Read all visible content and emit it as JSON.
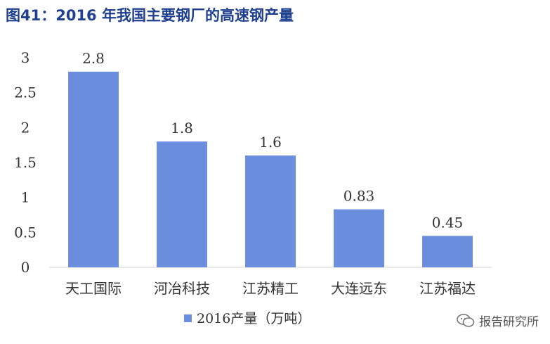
{
  "title": "图41：2016 年我国主要钢厂的高速钢产量",
  "watermark": {
    "text": "报告研究所",
    "icon": "wechat-icon"
  },
  "colors": {
    "bar": "#6b8fde",
    "title": "#1f3f8f",
    "axis": "#d0d0d0",
    "text": "#333333"
  },
  "chart_data": {
    "type": "bar",
    "categories": [
      "天工国际",
      "河冶科技",
      "江苏精工",
      "大连远东",
      "江苏福达"
    ],
    "series": [
      {
        "name": "2016产量（万吨）",
        "values": [
          2.8,
          1.8,
          1.6,
          0.83,
          0.45
        ]
      }
    ],
    "ylim": [
      0,
      3
    ],
    "yticks": [
      "0",
      "0.5",
      "1",
      "1.5",
      "2",
      "2.5",
      "3"
    ],
    "data_labels": [
      "2.8",
      "1.8",
      "1.6",
      "0.83",
      "0.45"
    ],
    "grid": false,
    "legend": "bottom-center"
  }
}
